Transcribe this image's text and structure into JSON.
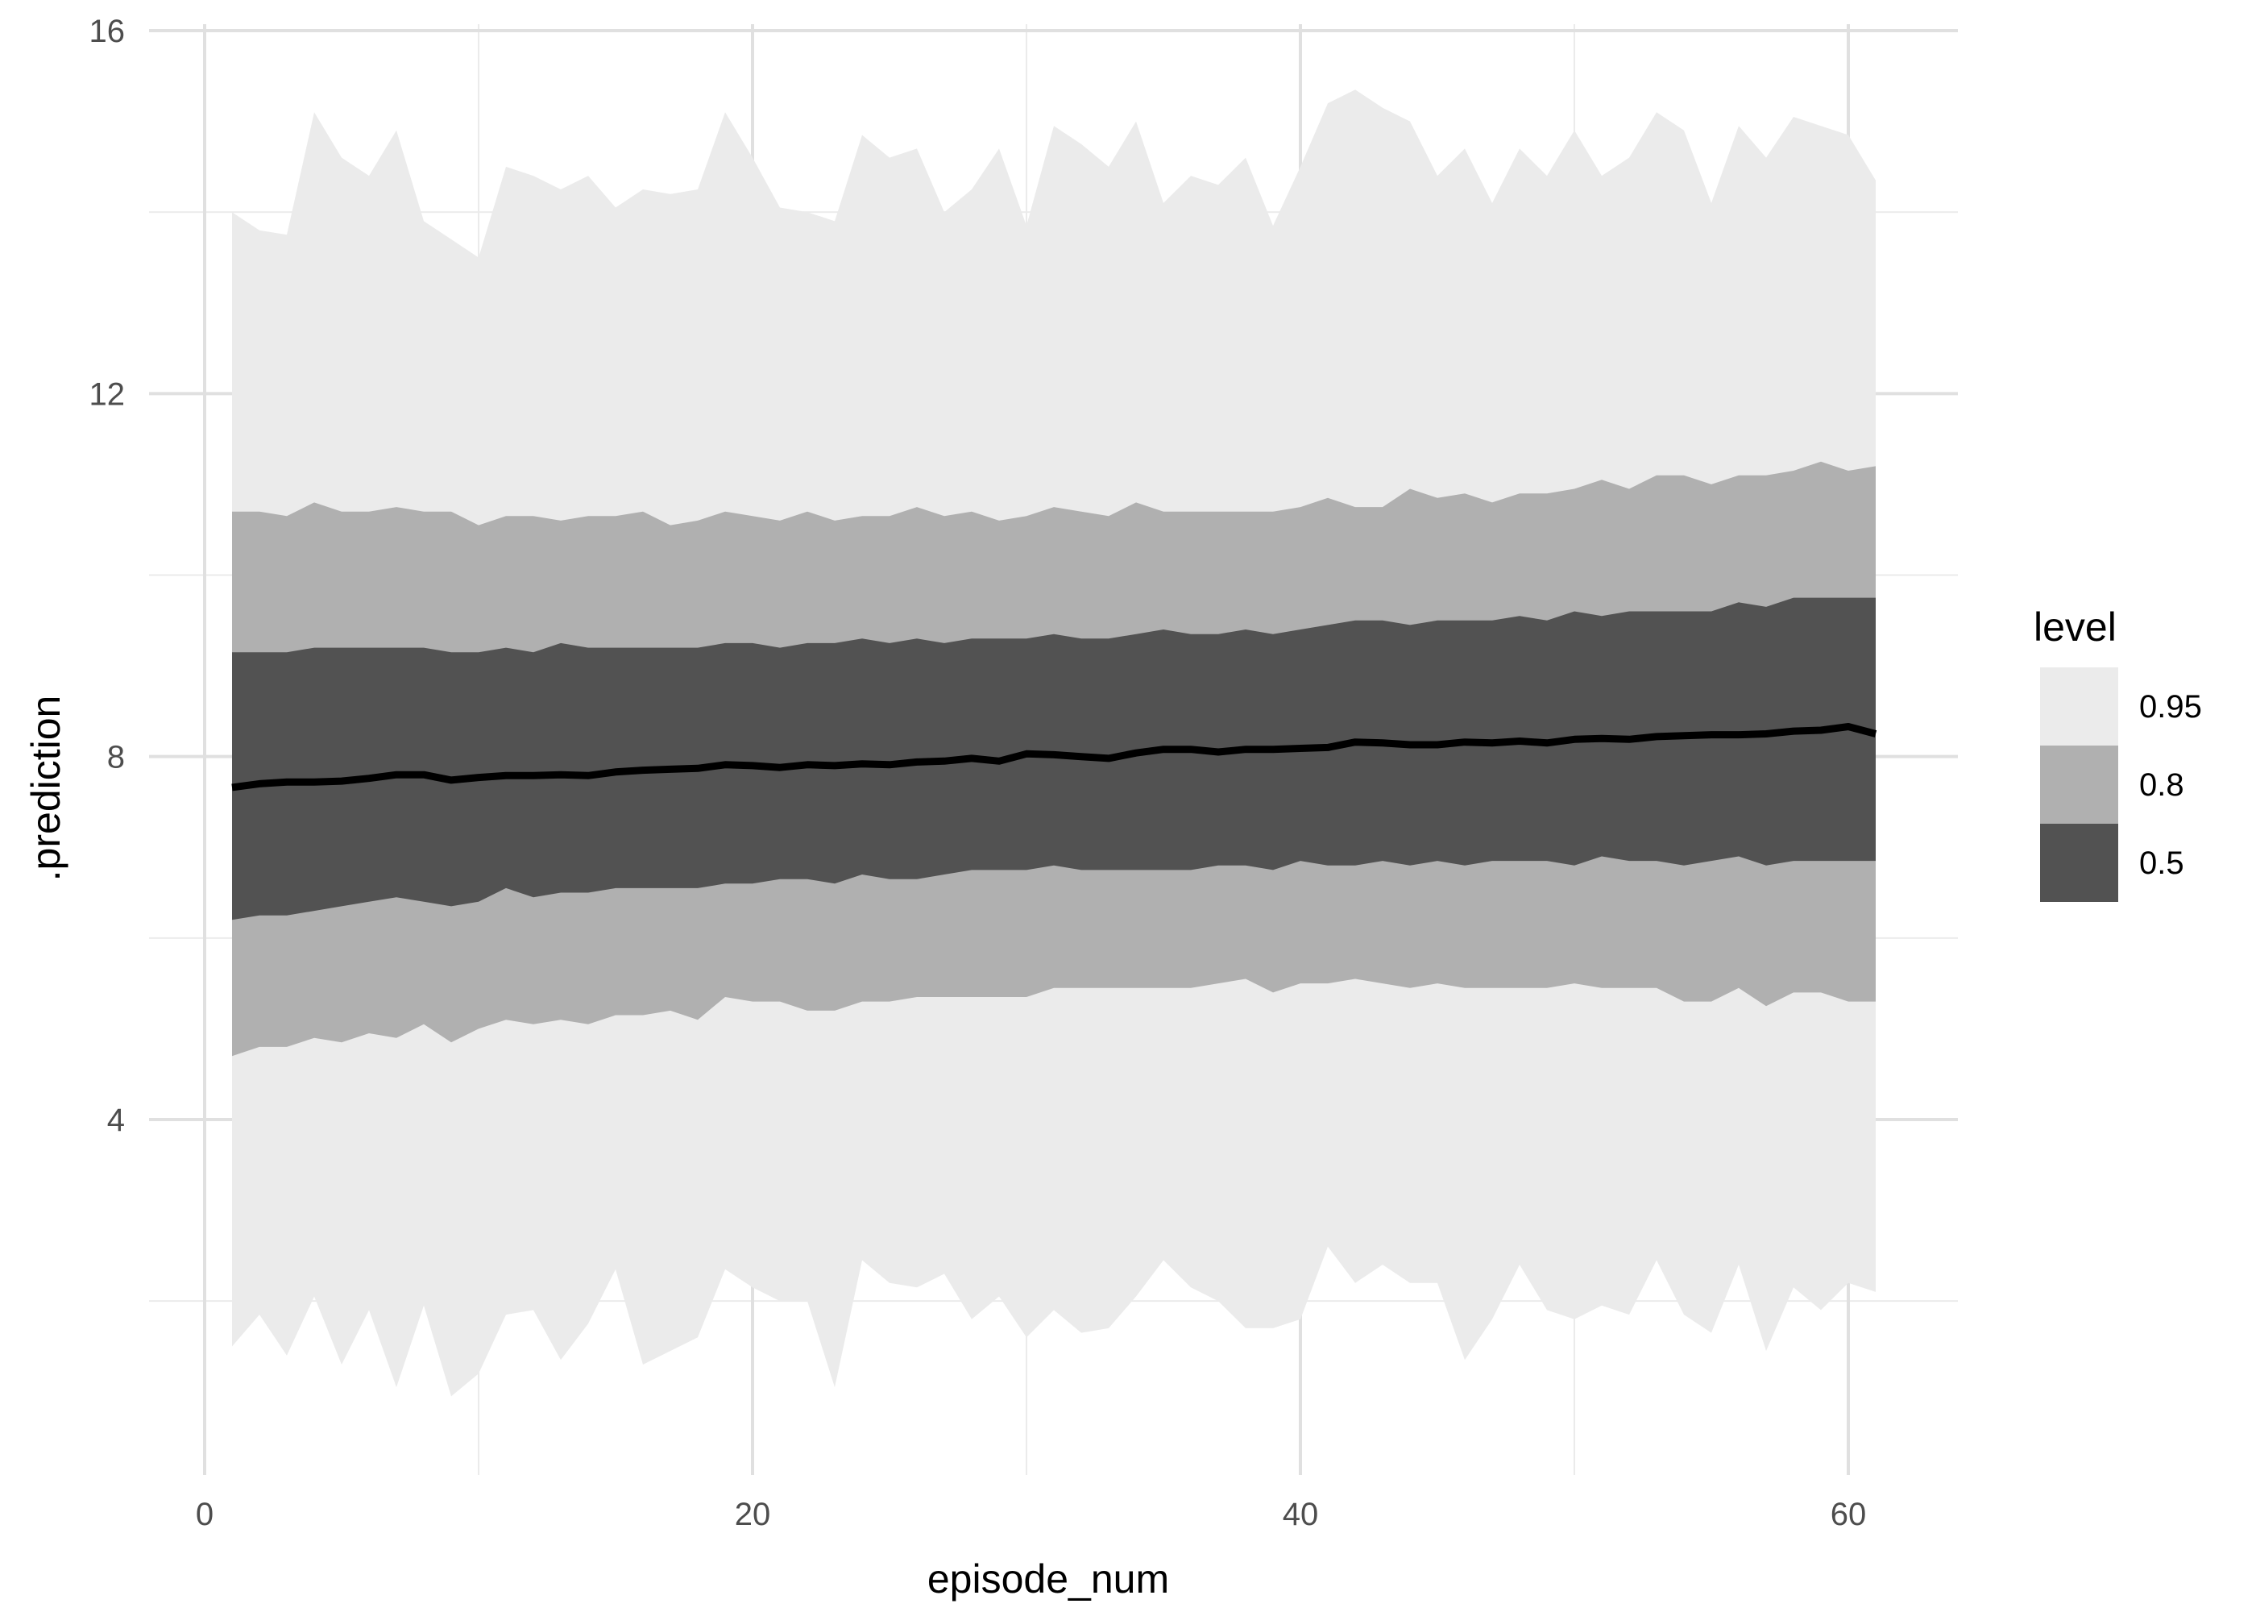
{
  "chart_data": {
    "type": "area",
    "xlabel": "episode_num",
    "ylabel": ".prediction",
    "xlim": [
      -1,
      64
    ],
    "ylim": [
      0,
      16
    ],
    "x_ticks": [
      0,
      20,
      40,
      60
    ],
    "y_ticks": [
      4,
      8,
      12,
      16
    ],
    "x_tick_labels": [
      "0",
      "20",
      "40",
      "60"
    ],
    "y_tick_labels": [
      "4",
      "8",
      "12",
      "16"
    ],
    "grid": true,
    "legend": {
      "title": "level",
      "position": "right",
      "entries": [
        {
          "label": "0.95",
          "color": "#ebebeb"
        },
        {
          "label": "0.8",
          "color": "#b0b0b0"
        },
        {
          "label": "0.5",
          "color": "#525252"
        }
      ]
    },
    "x": [
      1,
      2,
      3,
      4,
      5,
      6,
      7,
      8,
      9,
      10,
      11,
      12,
      13,
      14,
      15,
      16,
      17,
      18,
      19,
      20,
      21,
      22,
      23,
      24,
      25,
      26,
      27,
      28,
      29,
      30,
      31,
      32,
      33,
      34,
      35,
      36,
      37,
      38,
      39,
      40,
      41,
      42,
      43,
      44,
      45,
      46,
      47,
      48,
      49,
      50,
      51,
      52,
      53,
      54,
      55,
      56,
      57,
      58,
      59,
      60,
      61
    ],
    "median": [
      7.66,
      7.7,
      7.72,
      7.72,
      7.73,
      7.76,
      7.8,
      7.8,
      7.74,
      7.77,
      7.79,
      7.79,
      7.8,
      7.79,
      7.83,
      7.85,
      7.86,
      7.87,
      7.91,
      7.9,
      7.88,
      7.91,
      7.9,
      7.92,
      7.91,
      7.94,
      7.95,
      7.98,
      7.95,
      8.03,
      8.02,
      8.0,
      7.98,
      8.04,
      8.08,
      8.08,
      8.05,
      8.08,
      8.08,
      8.09,
      8.1,
      8.16,
      8.15,
      8.13,
      8.13,
      8.16,
      8.15,
      8.17,
      8.15,
      8.19,
      8.2,
      8.19,
      8.22,
      8.23,
      8.24,
      8.24,
      8.25,
      8.28,
      8.29,
      8.33,
      8.25
    ],
    "bands": [
      {
        "level": "0.95",
        "color": "#ebebeb",
        "lower": [
          1.5,
          1.85,
          1.4,
          2.05,
          1.3,
          1.9,
          1.05,
          1.95,
          0.95,
          1.2,
          1.85,
          1.9,
          1.35,
          1.75,
          2.35,
          1.3,
          1.45,
          1.6,
          2.35,
          2.15,
          2.0,
          2.0,
          1.05,
          2.45,
          2.2,
          2.15,
          2.3,
          1.8,
          2.05,
          1.6,
          1.9,
          1.65,
          1.7,
          2.05,
          2.45,
          2.15,
          2.0,
          1.7,
          1.7,
          1.8,
          2.6,
          2.2,
          2.4,
          2.2,
          2.2,
          1.35,
          1.8,
          2.4,
          1.9,
          1.8,
          1.95,
          1.85,
          2.45,
          1.85,
          1.65,
          2.4,
          1.45,
          2.15,
          1.9,
          2.2,
          2.1
        ],
        "upper": [
          14.0,
          13.8,
          13.75,
          15.1,
          14.6,
          14.4,
          14.9,
          13.9,
          13.7,
          13.5,
          14.5,
          14.4,
          14.25,
          14.4,
          14.05,
          14.25,
          14.2,
          14.25,
          15.1,
          14.6,
          14.05,
          14.0,
          13.9,
          14.85,
          14.6,
          14.7,
          14.0,
          14.25,
          14.7,
          13.85,
          14.95,
          14.75,
          14.5,
          15.0,
          14.1,
          14.4,
          14.3,
          14.6,
          13.85,
          14.5,
          15.2,
          15.35,
          15.15,
          15.0,
          14.4,
          14.7,
          14.1,
          14.7,
          14.4,
          14.9,
          14.4,
          14.6,
          15.1,
          14.9,
          14.1,
          14.95,
          14.6,
          15.05,
          14.95,
          14.85,
          14.35
        ]
      },
      {
        "level": "0.8",
        "color": "#b0b0b0",
        "lower": [
          4.7,
          4.8,
          4.8,
          4.9,
          4.85,
          4.95,
          4.9,
          5.05,
          4.85,
          5.0,
          5.1,
          5.05,
          5.1,
          5.05,
          5.15,
          5.15,
          5.2,
          5.1,
          5.35,
          5.3,
          5.3,
          5.2,
          5.2,
          5.3,
          5.3,
          5.35,
          5.35,
          5.35,
          5.35,
          5.35,
          5.45,
          5.45,
          5.45,
          5.45,
          5.45,
          5.45,
          5.5,
          5.55,
          5.4,
          5.5,
          5.5,
          5.55,
          5.5,
          5.45,
          5.5,
          5.45,
          5.45,
          5.45,
          5.45,
          5.5,
          5.45,
          5.45,
          5.45,
          5.3,
          5.3,
          5.45,
          5.25,
          5.4,
          5.4,
          5.3,
          5.3
        ],
        "upper": [
          10.7,
          10.7,
          10.65,
          10.8,
          10.7,
          10.7,
          10.75,
          10.7,
          10.7,
          10.55,
          10.65,
          10.65,
          10.6,
          10.65,
          10.65,
          10.7,
          10.55,
          10.6,
          10.7,
          10.65,
          10.6,
          10.7,
          10.6,
          10.65,
          10.65,
          10.75,
          10.65,
          10.7,
          10.6,
          10.65,
          10.75,
          10.7,
          10.65,
          10.8,
          10.7,
          10.7,
          10.7,
          10.7,
          10.7,
          10.75,
          10.85,
          10.75,
          10.75,
          10.95,
          10.85,
          10.9,
          10.8,
          10.9,
          10.9,
          10.95,
          11.05,
          10.95,
          11.1,
          11.1,
          11.0,
          11.1,
          11.1,
          11.15,
          11.25,
          11.15,
          11.2
        ]
      },
      {
        "level": "0.5",
        "color": "#525252",
        "lower": [
          6.2,
          6.25,
          6.25,
          6.3,
          6.35,
          6.4,
          6.45,
          6.4,
          6.35,
          6.4,
          6.55,
          6.45,
          6.5,
          6.5,
          6.55,
          6.55,
          6.55,
          6.55,
          6.6,
          6.6,
          6.65,
          6.65,
          6.6,
          6.7,
          6.65,
          6.65,
          6.7,
          6.75,
          6.75,
          6.75,
          6.8,
          6.75,
          6.75,
          6.75,
          6.75,
          6.75,
          6.8,
          6.8,
          6.75,
          6.85,
          6.8,
          6.8,
          6.85,
          6.8,
          6.85,
          6.8,
          6.85,
          6.85,
          6.85,
          6.8,
          6.9,
          6.85,
          6.85,
          6.8,
          6.85,
          6.9,
          6.8,
          6.85,
          6.85,
          6.85,
          6.85
        ],
        "upper": [
          9.15,
          9.15,
          9.15,
          9.2,
          9.2,
          9.2,
          9.2,
          9.2,
          9.15,
          9.15,
          9.2,
          9.15,
          9.25,
          9.2,
          9.2,
          9.2,
          9.2,
          9.2,
          9.25,
          9.25,
          9.2,
          9.25,
          9.25,
          9.3,
          9.25,
          9.3,
          9.25,
          9.3,
          9.3,
          9.3,
          9.35,
          9.3,
          9.3,
          9.35,
          9.4,
          9.35,
          9.35,
          9.4,
          9.35,
          9.4,
          9.45,
          9.5,
          9.5,
          9.45,
          9.5,
          9.5,
          9.5,
          9.55,
          9.5,
          9.6,
          9.55,
          9.6,
          9.6,
          9.6,
          9.6,
          9.7,
          9.65,
          9.75,
          9.75,
          9.75,
          9.75
        ]
      }
    ]
  }
}
